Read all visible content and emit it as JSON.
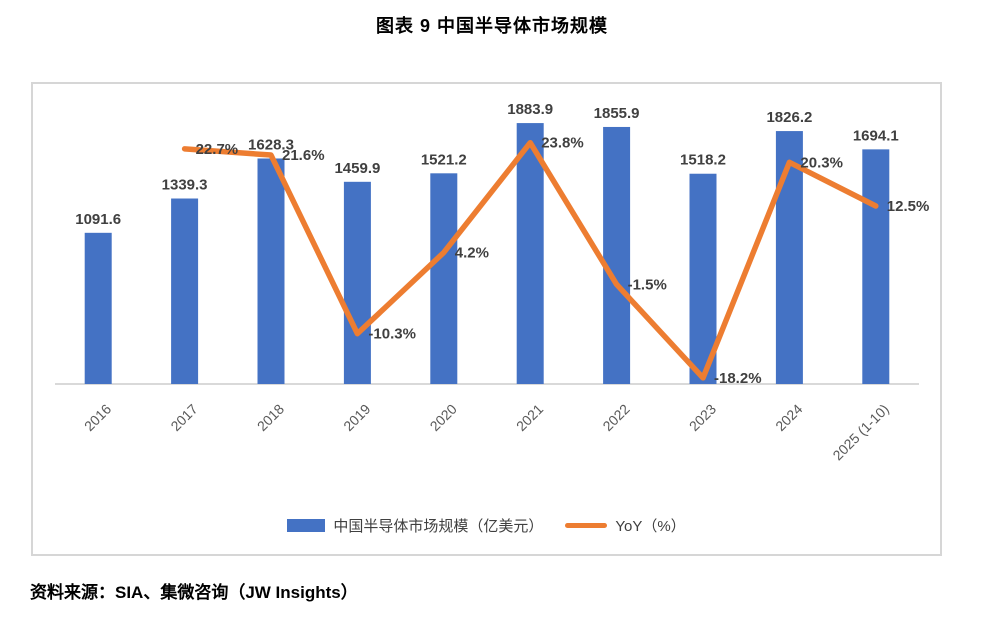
{
  "title": "图表 9 中国半导体市场规模",
  "source": "资料来源：SIA、集微咨询（JW Insights）",
  "legend": {
    "bar_label": "中国半导体市场规模（亿美元）",
    "line_label": "YoY（%）"
  },
  "colors": {
    "bar": "#4472C4",
    "line": "#ED7D31",
    "frame_border": "#D6D6D6",
    "axis_line": "#D9D9D9",
    "data_label": "#404040",
    "tick_label": "#595959"
  },
  "chart_data": {
    "type": "combo",
    "title": "图表 9 中国半导体市场规模",
    "categories": [
      "2016",
      "2017",
      "2018",
      "2019",
      "2020",
      "2021",
      "2022",
      "2023",
      "2024",
      "2025 (1-10)"
    ],
    "series": [
      {
        "name": "中国半导体市场规模（亿美元）",
        "type": "bar",
        "values": [
          1091.6,
          1339.3,
          1628.3,
          1459.9,
          1521.2,
          1883.9,
          1855.9,
          1518.2,
          1826.2,
          1694.1
        ],
        "labels": [
          "1091.6",
          "1339.3",
          "1628.3",
          "1459.9",
          "1521.2",
          "1883.9",
          "1855.9",
          "1518.2",
          "1826.2",
          "1694.1"
        ]
      },
      {
        "name": "YoY（%）",
        "type": "line",
        "values": [
          null,
          22.7,
          21.6,
          -10.3,
          4.2,
          23.8,
          -1.5,
          -18.2,
          20.3,
          12.5
        ],
        "labels": [
          null,
          "22.7%",
          "21.6%",
          "-10.3%",
          "4.2%",
          "23.8%",
          "-1.5%",
          "-18.2%",
          "20.3%",
          "12.5%"
        ]
      }
    ],
    "bar_axis_range": [
      0,
      2000
    ],
    "line_axis_range": [
      -25,
      30
    ],
    "grid": false,
    "y_axis_labels_visible": false,
    "legend_position": "bottom",
    "data_labels_visible": true
  }
}
